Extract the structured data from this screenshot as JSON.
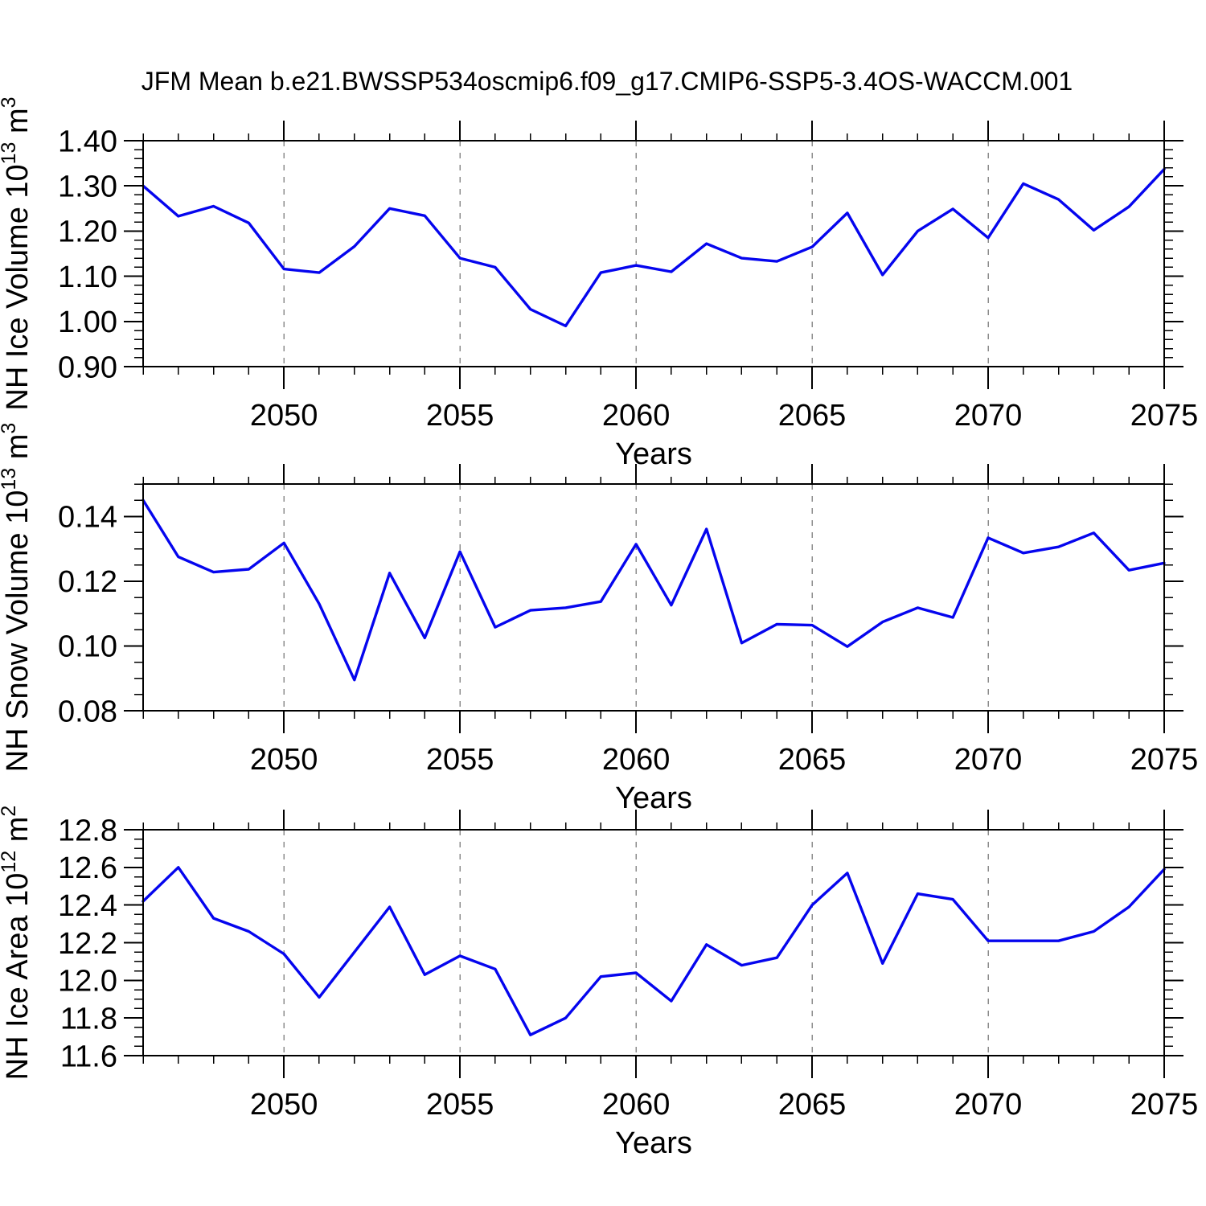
{
  "title": "JFM Mean b.e21.BWSSP534oscmip6.f09_g17.CMIP6-SSP5-3.4OS-WACCM.001",
  "colors": {
    "line": "#0505ee",
    "grid": "#8c8c8c",
    "axis": "#000000",
    "text": "#000000",
    "background": "#ffffff"
  },
  "years": [
    2046,
    2047,
    2048,
    2049,
    2050,
    2051,
    2052,
    2053,
    2054,
    2055,
    2056,
    2057,
    2058,
    2059,
    2060,
    2061,
    2062,
    2063,
    2064,
    2065,
    2066,
    2067,
    2068,
    2069,
    2070,
    2071,
    2072,
    2073,
    2074,
    2075
  ],
  "chart_data": [
    {
      "id": "nh-ice-volume",
      "type": "line",
      "ylabel": "NH Ice Volume 10^13 m^3",
      "xlabel": "Years",
      "xlim": [
        2046,
        2075
      ],
      "xticks": [
        2050,
        2055,
        2060,
        2065,
        2070,
        2075
      ],
      "gridlines_x": [
        2050,
        2055,
        2060,
        2065,
        2070
      ],
      "ylim": [
        0.9,
        1.4
      ],
      "yticks": {
        "values": [
          0.9,
          1.0,
          1.1,
          1.2,
          1.3,
          1.4
        ],
        "labels": [
          "0.90",
          "1.00",
          "1.10",
          "1.20",
          "1.30",
          "1.40"
        ]
      },
      "ytick_minor": 0.02,
      "values": [
        1.3,
        1.233,
        1.255,
        1.218,
        1.116,
        1.108,
        1.166,
        1.25,
        1.234,
        1.14,
        1.12,
        1.027,
        0.99,
        1.108,
        1.124,
        1.11,
        1.172,
        1.14,
        1.133,
        1.165,
        1.24,
        1.103,
        1.2,
        1.249,
        1.185,
        1.305,
        1.27,
        1.202,
        1.254,
        1.337
      ]
    },
    {
      "id": "nh-snow-volume",
      "type": "line",
      "ylabel": "NH Snow Volume 10^13 m^3",
      "xlabel": "Years",
      "xlim": [
        2046,
        2075
      ],
      "xticks": [
        2050,
        2055,
        2060,
        2065,
        2070,
        2075
      ],
      "gridlines_x": [
        2050,
        2055,
        2060,
        2065,
        2070
      ],
      "ylim": [
        0.08,
        0.15
      ],
      "yticks": {
        "values": [
          0.08,
          0.1,
          0.12,
          0.14
        ],
        "labels": [
          "0.08",
          "0.10",
          "0.12",
          "0.14"
        ]
      },
      "ytick_minor": 0.005,
      "values": [
        0.145,
        0.1275,
        0.1228,
        0.1237,
        0.1318,
        0.113,
        0.0895,
        0.1225,
        0.1025,
        0.1291,
        0.1058,
        0.111,
        0.1118,
        0.1137,
        0.1314,
        0.1126,
        0.1361,
        0.1009,
        0.1067,
        0.1064,
        0.0998,
        0.1074,
        0.1118,
        0.1088,
        0.1334,
        0.1287,
        0.1306,
        0.1349,
        0.1234,
        0.1256
      ]
    },
    {
      "id": "nh-ice-area",
      "type": "line",
      "ylabel": "NH Ice Area 10^12 m^2",
      "xlabel": "Years",
      "xlim": [
        2046,
        2075
      ],
      "xticks": [
        2050,
        2055,
        2060,
        2065,
        2070,
        2075
      ],
      "gridlines_x": [
        2050,
        2055,
        2060,
        2065,
        2070
      ],
      "ylim": [
        11.6,
        12.8
      ],
      "yticks": {
        "values": [
          11.6,
          11.8,
          12.0,
          12.2,
          12.4,
          12.6,
          12.8
        ],
        "labels": [
          "11.6",
          "11.8",
          "12.0",
          "12.2",
          "12.4",
          "12.6",
          "12.8"
        ]
      },
      "ytick_minor": 0.05,
      "values": [
        12.42,
        12.6,
        12.33,
        12.26,
        12.14,
        11.91,
        12.15,
        12.39,
        12.03,
        12.13,
        12.06,
        11.71,
        11.8,
        12.02,
        12.04,
        11.89,
        12.19,
        12.08,
        12.12,
        12.4,
        12.57,
        12.09,
        12.46,
        12.43,
        12.21,
        12.21,
        12.21,
        12.26,
        12.39,
        12.59
      ]
    }
  ]
}
